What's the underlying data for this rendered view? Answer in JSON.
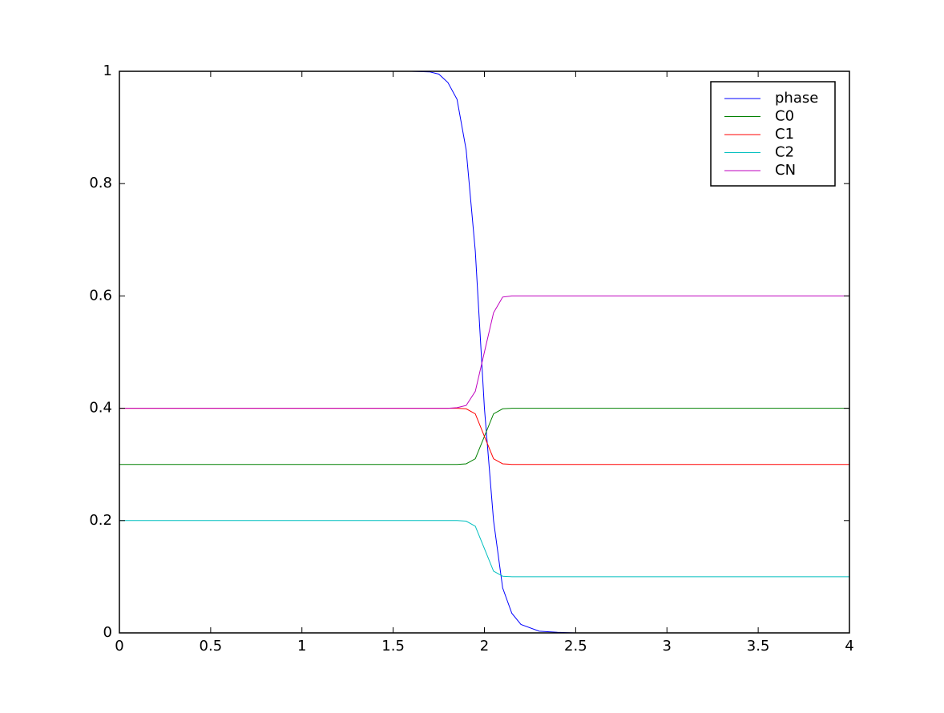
{
  "chart_data": {
    "type": "line",
    "x": [
      0,
      0.5,
      1,
      1.5,
      1.6,
      1.7,
      1.75,
      1.8,
      1.85,
      1.9,
      1.95,
      2.0,
      2.05,
      2.1,
      2.15,
      2.2,
      2.3,
      2.4,
      2.5,
      3,
      3.5,
      4
    ],
    "series": [
      {
        "name": "phase",
        "color": "#0000ff",
        "values": [
          1,
          1,
          1,
          1,
          1,
          0.999,
          0.995,
          0.98,
          0.95,
          0.86,
          0.68,
          0.4,
          0.2,
          0.08,
          0.035,
          0.015,
          0.003,
          0.001,
          0,
          0,
          0,
          0
        ]
      },
      {
        "name": "C0",
        "color": "#008000",
        "values": [
          0.3,
          0.3,
          0.3,
          0.3,
          0.3,
          0.3,
          0.3,
          0.3,
          0.3,
          0.301,
          0.31,
          0.35,
          0.39,
          0.399,
          0.4,
          0.4,
          0.4,
          0.4,
          0.4,
          0.4,
          0.4,
          0.4
        ]
      },
      {
        "name": "C1",
        "color": "#ff0000",
        "values": [
          0.4,
          0.4,
          0.4,
          0.4,
          0.4,
          0.4,
          0.4,
          0.4,
          0.4,
          0.399,
          0.39,
          0.35,
          0.31,
          0.301,
          0.3,
          0.3,
          0.3,
          0.3,
          0.3,
          0.3,
          0.3,
          0.3
        ]
      },
      {
        "name": "C2",
        "color": "#00bfbf",
        "values": [
          0.2,
          0.2,
          0.2,
          0.2,
          0.2,
          0.2,
          0.2,
          0.2,
          0.2,
          0.199,
          0.19,
          0.15,
          0.11,
          0.101,
          0.1,
          0.1,
          0.1,
          0.1,
          0.1,
          0.1,
          0.1,
          0.1
        ]
      },
      {
        "name": "CN",
        "color": "#bf00bf",
        "values": [
          0.4,
          0.4,
          0.4,
          0.4,
          0.4,
          0.4,
          0.4,
          0.4,
          0.401,
          0.405,
          0.43,
          0.5,
          0.57,
          0.598,
          0.6,
          0.6,
          0.6,
          0.6,
          0.6,
          0.6,
          0.6,
          0.6
        ]
      }
    ],
    "xlim": [
      0,
      4
    ],
    "xticks": [
      0,
      0.5,
      1,
      1.5,
      2,
      2.5,
      3,
      3.5,
      4
    ],
    "ylim": [
      0,
      1
    ],
    "yticks": [
      0,
      0.2,
      0.4,
      0.6,
      0.8,
      1
    ],
    "legend": "upper right"
  }
}
